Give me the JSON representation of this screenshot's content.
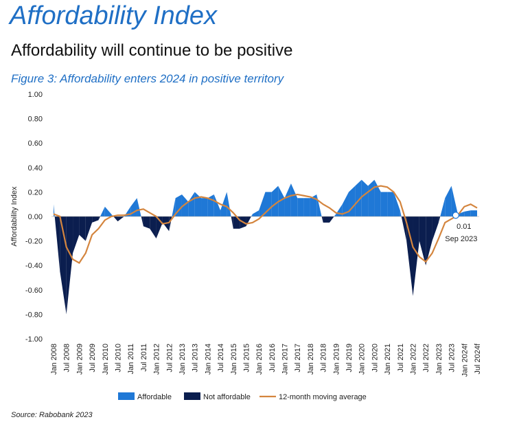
{
  "header": {
    "title": "Affordability Index",
    "subtitle": "Affordability will continue to be positive",
    "figure": "Figure 3: Affordability enters 2024 in positive territory"
  },
  "chart_data": {
    "type": "area-line",
    "ylabel": "Affordability Index",
    "categories": [
      "Jan 2008",
      null,
      "Jul 2008",
      null,
      "Jan 2009",
      null,
      "Jul 2009",
      null,
      "Jan 2010",
      null,
      "Jul 2010",
      null,
      "Jan 2011",
      null,
      "Jul 2011",
      null,
      "Jan 2012",
      null,
      "Jul 2012",
      null,
      "Jan 2013",
      null,
      "Jul 2013",
      null,
      "Jan 2014",
      null,
      "Jul 2014",
      null,
      "Jan 2015",
      null,
      "Jul 2015",
      null,
      "Jan 2016",
      null,
      "Jul 2016",
      null,
      "Jan 2017",
      null,
      "Jul 2017",
      null,
      "Jan 2018",
      null,
      "Jul 2018",
      null,
      "Jan 2019",
      null,
      "Jul 2019",
      null,
      "Jan 2020",
      null,
      "Jul 2020",
      null,
      "Jan 2021",
      null,
      "Jul 2021",
      null,
      "Jan 2022",
      null,
      "Jul 2022",
      null,
      "Jan 2023",
      null,
      "Jul 2023",
      null,
      "Jan 2024f",
      null,
      "Jul 2024f"
    ],
    "index": {
      "positive_name": "Affordable",
      "positive_color": "#1f78d6",
      "negative_name": "Not affordable",
      "negative_color": "#0b1e4f",
      "values": [
        0.1,
        -0.45,
        -0.8,
        -0.3,
        -0.15,
        -0.2,
        -0.05,
        -0.03,
        0.08,
        0.02,
        -0.04,
        0.0,
        0.08,
        0.15,
        -0.08,
        -0.1,
        -0.18,
        -0.05,
        -0.12,
        0.15,
        0.18,
        0.12,
        0.2,
        0.15,
        0.15,
        0.18,
        0.05,
        0.2,
        -0.1,
        -0.1,
        -0.08,
        0.02,
        0.05,
        0.2,
        0.2,
        0.25,
        0.15,
        0.27,
        0.15,
        0.15,
        0.15,
        0.18,
        -0.05,
        -0.05,
        0.02,
        0.1,
        0.2,
        0.25,
        0.3,
        0.25,
        0.3,
        0.2,
        0.2,
        0.2,
        0.05,
        -0.2,
        -0.65,
        -0.2,
        -0.4,
        -0.2,
        -0.05,
        0.15,
        0.25,
        0.02,
        0.04,
        0.05,
        0.05
      ]
    },
    "series": [
      {
        "name": "12-month moving average",
        "color": "#d4853e",
        "values": [
          0.02,
          0.0,
          -0.25,
          -0.35,
          -0.38,
          -0.3,
          -0.15,
          -0.1,
          -0.03,
          0.0,
          0.01,
          0.01,
          0.02,
          0.05,
          0.06,
          0.03,
          0.0,
          -0.06,
          -0.05,
          0.02,
          0.08,
          0.12,
          0.15,
          0.16,
          0.15,
          0.13,
          0.1,
          0.08,
          0.03,
          -0.03,
          -0.06,
          -0.05,
          -0.02,
          0.03,
          0.08,
          0.12,
          0.15,
          0.17,
          0.18,
          0.17,
          0.16,
          0.14,
          0.1,
          0.07,
          0.03,
          0.02,
          0.04,
          0.1,
          0.16,
          0.2,
          0.24,
          0.25,
          0.24,
          0.2,
          0.12,
          -0.05,
          -0.25,
          -0.33,
          -0.37,
          -0.3,
          -0.18,
          -0.05,
          -0.02,
          0.01,
          0.08,
          0.1,
          0.07
        ]
      }
    ],
    "annotation": {
      "value": 0.01,
      "label": "0.01",
      "date": "Sep 2023"
    },
    "ylim": [
      -1,
      1
    ],
    "yticks": [
      {
        "value": -1,
        "label": "-1.00"
      },
      {
        "value": -0.8,
        "label": "-0.80"
      },
      {
        "value": -0.6,
        "label": "-0.60"
      },
      {
        "value": -0.4,
        "label": "-0.40"
      },
      {
        "value": -0.2,
        "label": "-0.20"
      },
      {
        "value": 0,
        "label": "0.00"
      },
      {
        "value": 0.2,
        "label": "0.20"
      },
      {
        "value": 0.4,
        "label": "0.40"
      },
      {
        "value": 0.6,
        "label": "0.60"
      },
      {
        "value": 0.8,
        "label": "0.80"
      },
      {
        "value": 1,
        "label": "1.00"
      }
    ],
    "grid": false,
    "source": "Source:  Rabobank 2023"
  }
}
